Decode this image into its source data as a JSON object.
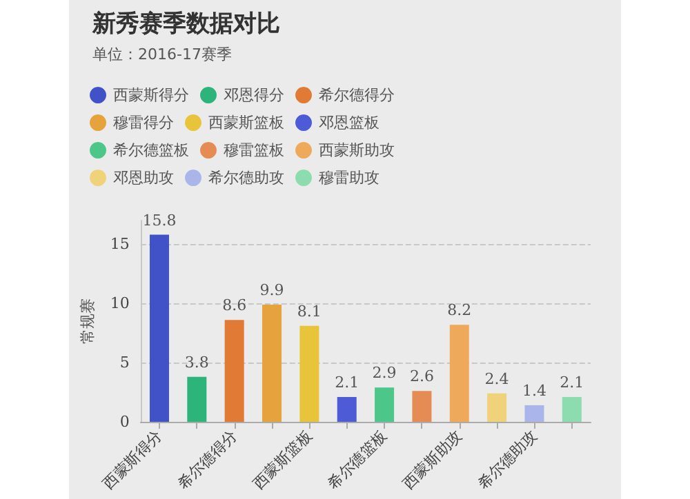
{
  "chart_data": {
    "type": "bar",
    "title": "新秀赛季数据对比",
    "subtitle": "单位：2016-17赛季",
    "ylabel": "常规赛",
    "categories": [
      "西蒙斯得分",
      null,
      "希尔德得分",
      null,
      "西蒙斯篮板",
      null,
      "希尔德篮板",
      null,
      "西蒙斯助攻",
      null,
      "希尔德助攻",
      null
    ],
    "series": [
      {
        "name": "西蒙斯得分",
        "color": "#4151c8",
        "values": [
          15.8,
          null,
          null,
          null,
          null,
          null,
          null,
          null,
          null,
          null,
          null,
          null
        ]
      },
      {
        "name": "邓恩得分",
        "color": "#2cb47a",
        "values": [
          null,
          3.8,
          null,
          null,
          null,
          null,
          null,
          null,
          null,
          null,
          null,
          null
        ]
      },
      {
        "name": "希尔德得分",
        "color": "#e07a35",
        "values": [
          null,
          null,
          8.6,
          null,
          null,
          null,
          null,
          null,
          null,
          null,
          null,
          null
        ]
      },
      {
        "name": "穆雷得分",
        "color": "#e6a23c",
        "values": [
          null,
          null,
          null,
          9.9,
          null,
          null,
          null,
          null,
          null,
          null,
          null,
          null
        ]
      },
      {
        "name": "西蒙斯篮板",
        "color": "#e8c43a",
        "values": [
          null,
          null,
          null,
          null,
          8.1,
          null,
          null,
          null,
          null,
          null,
          null,
          null
        ]
      },
      {
        "name": "邓恩篮板",
        "color": "#4d5bd6",
        "values": [
          null,
          null,
          null,
          null,
          null,
          2.1,
          null,
          null,
          null,
          null,
          null,
          null
        ]
      },
      {
        "name": "希尔德篮板",
        "color": "#4cc689",
        "values": [
          null,
          null,
          null,
          null,
          null,
          null,
          2.9,
          null,
          null,
          null,
          null,
          null
        ]
      },
      {
        "name": "穆雷篮板",
        "color": "#e58c55",
        "values": [
          null,
          null,
          null,
          null,
          null,
          null,
          null,
          2.6,
          null,
          null,
          null,
          null
        ]
      },
      {
        "name": "西蒙斯助攻",
        "color": "#eeaa5a",
        "values": [
          null,
          null,
          null,
          null,
          null,
          null,
          null,
          null,
          8.2,
          null,
          null,
          null
        ]
      },
      {
        "name": "邓恩助攻",
        "color": "#efd27a",
        "values": [
          null,
          null,
          null,
          null,
          null,
          null,
          null,
          null,
          null,
          2.4,
          null,
          null
        ]
      },
      {
        "name": "希尔德助攻",
        "color": "#aab6ea",
        "values": [
          null,
          null,
          null,
          null,
          null,
          null,
          null,
          null,
          null,
          null,
          1.4,
          null
        ]
      },
      {
        "name": "穆雷助攻",
        "color": "#8ddcb0",
        "values": [
          null,
          null,
          null,
          null,
          null,
          null,
          null,
          null,
          null,
          null,
          null,
          2.1
        ]
      }
    ],
    "ylim": [
      0,
      17
    ],
    "yticks": [
      0,
      5,
      10,
      15
    ],
    "grid": "y",
    "legend": "top left",
    "data_labels": true
  }
}
